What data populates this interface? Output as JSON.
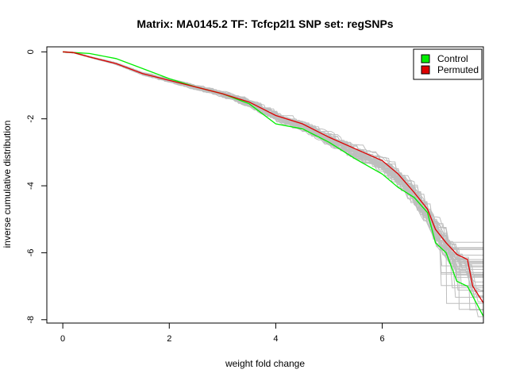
{
  "chart_data": {
    "type": "line",
    "title": "Matrix: MA0145.2 TF: Tcfcp2l1 SNP set: regSNPs",
    "xlabel": "weight fold change",
    "ylabel": "inverse cumulative distribution",
    "xlim": [
      -0.3,
      7.9
    ],
    "ylim": [
      -8.1,
      0.15
    ],
    "x_ticks": [
      0,
      2,
      4,
      6
    ],
    "y_ticks": [
      0,
      -2,
      -4,
      -6,
      -8
    ],
    "x_tick_labels": [
      "0",
      "2",
      "4",
      "6"
    ],
    "y_tick_labels": [
      "0",
      "-2",
      "-4",
      "-6",
      "-8"
    ],
    "legend_position": "top-right",
    "legend": [
      {
        "label": "Control",
        "color": "#00ee00"
      },
      {
        "label": "Permuted",
        "color": "#dd0000"
      }
    ],
    "background_series_color": "#bebebe",
    "background_series_count": 40,
    "series": [
      {
        "name": "Control",
        "color": "#00ee00",
        "x": [
          0,
          0.2,
          0.5,
          1.0,
          1.5,
          2.0,
          2.5,
          3.0,
          3.5,
          4.0,
          4.5,
          5.0,
          5.5,
          6.0,
          6.3,
          6.6,
          6.85,
          7.0,
          7.2,
          7.4,
          7.6,
          7.9
        ],
        "y": [
          0,
          -0.02,
          -0.05,
          -0.2,
          -0.5,
          -0.8,
          -1.05,
          -1.25,
          -1.55,
          -2.15,
          -2.3,
          -2.7,
          -3.2,
          -3.65,
          -4.05,
          -4.35,
          -4.8,
          -5.7,
          -6.0,
          -6.85,
          -7.0,
          -7.9
        ]
      },
      {
        "name": "Permuted",
        "color": "#dd0000",
        "x": [
          0,
          0.2,
          0.5,
          1.0,
          1.5,
          2.0,
          2.5,
          3.0,
          3.5,
          4.0,
          4.5,
          5.0,
          5.5,
          6.0,
          6.3,
          6.6,
          6.85,
          7.0,
          7.2,
          7.4,
          7.6,
          7.7,
          7.9
        ],
        "y": [
          0,
          -0.02,
          -0.15,
          -0.35,
          -0.65,
          -0.85,
          -1.05,
          -1.25,
          -1.5,
          -1.9,
          -2.15,
          -2.55,
          -2.9,
          -3.25,
          -3.65,
          -4.2,
          -4.7,
          -5.3,
          -5.7,
          -6.05,
          -6.2,
          -7.0,
          -7.5
        ]
      }
    ]
  }
}
